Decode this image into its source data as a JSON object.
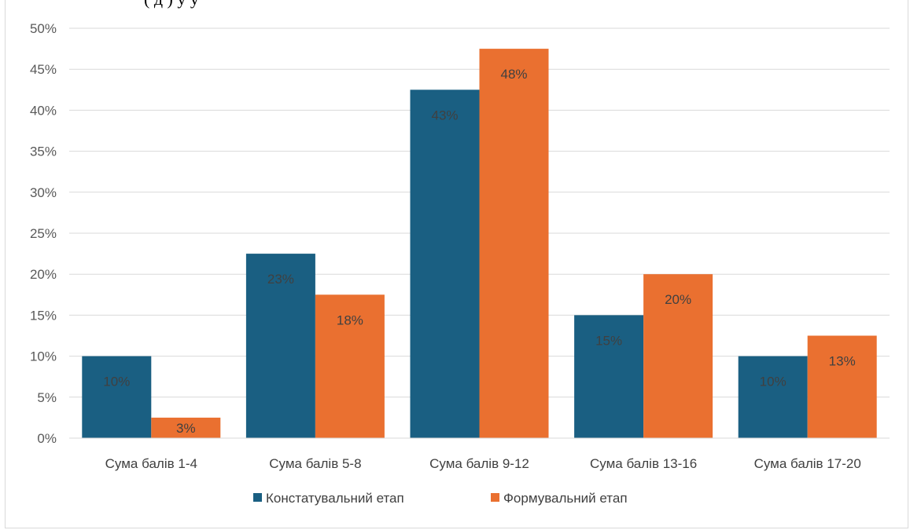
{
  "caption": {
    "visible_text": "(  д  )    у у"
  },
  "chart_data": {
    "type": "bar",
    "categories": [
      "Сума балів 1-4",
      "Сума балів 5-8",
      "Сума балів 9-12",
      "Сума балів 13-16",
      "Сума балів 17-20"
    ],
    "series": [
      {
        "name": "Констатувальний етап",
        "color": "#1a5f82",
        "values": [
          10,
          22.5,
          42.5,
          15,
          10
        ],
        "labels": [
          "10%",
          "23%",
          "43%",
          "15%",
          "10%"
        ]
      },
      {
        "name": "Формувальний етап",
        "color": "#ea7030",
        "values": [
          2.5,
          17.5,
          47.5,
          20,
          12.5
        ],
        "labels": [
          "3%",
          "18%",
          "48%",
          "20%",
          "13%"
        ]
      }
    ],
    "ylim": [
      0,
      50
    ],
    "yticks": [
      "0%",
      "5%",
      "10%",
      "15%",
      "20%",
      "25%",
      "30%",
      "35%",
      "40%",
      "45%",
      "50%"
    ],
    "grid": true,
    "legend_position": "bottom",
    "title": "",
    "xlabel": "",
    "ylabel": ""
  }
}
